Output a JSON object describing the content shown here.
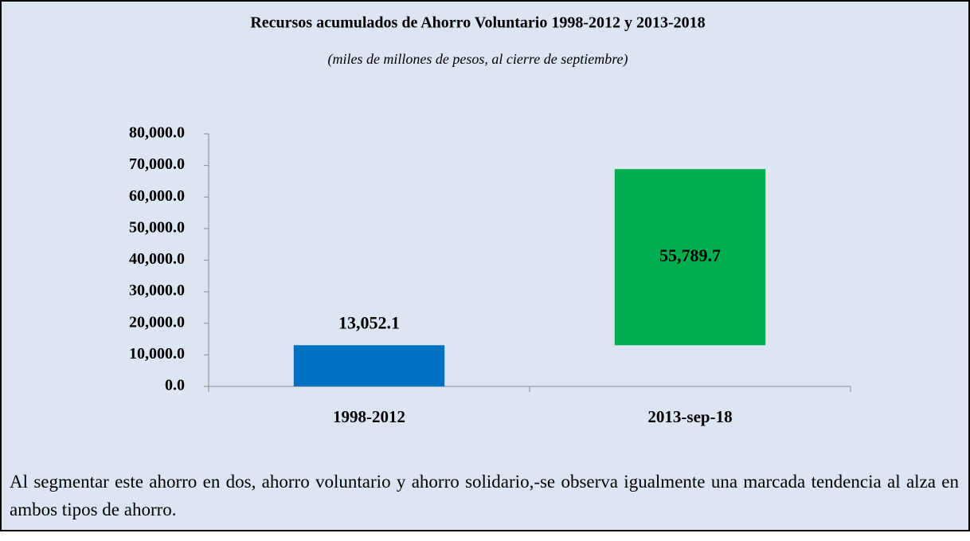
{
  "chart_data": {
    "type": "waterfall",
    "title": "Recursos acumulados de Ahorro Voluntario 1998-2012 y 2013-2018",
    "subtitle": "(miles de millones de pesos, al cierre de septiembre)",
    "categories": [
      "1998-2012",
      "2013-sep-18"
    ],
    "values": [
      13052.1,
      55789.7
    ],
    "value_labels": [
      "13,052.1",
      "55,789.7"
    ],
    "colors": [
      "#0070c0",
      "#00b050"
    ],
    "ylim": [
      0,
      80000
    ],
    "yticks": [
      {
        "value": 0,
        "label": "0.0"
      },
      {
        "value": 10000,
        "label": "10,000.0"
      },
      {
        "value": 20000,
        "label": "20,000.0"
      },
      {
        "value": 30000,
        "label": "30,000.0"
      },
      {
        "value": 40000,
        "label": "40,000.0"
      },
      {
        "value": 50000,
        "label": "50,000.0"
      },
      {
        "value": 60000,
        "label": "60,000.0"
      },
      {
        "value": 70000,
        "label": "70,000.0"
      },
      {
        "value": 80000,
        "label": "80,000.0"
      }
    ],
    "grid": false
  },
  "paragraph": "Al segmentar este ahorro en dos, ahorro voluntario y ahorro solidario,-se observa igualmente una marcada tendencia al alza en ambos tipos de ahorro."
}
